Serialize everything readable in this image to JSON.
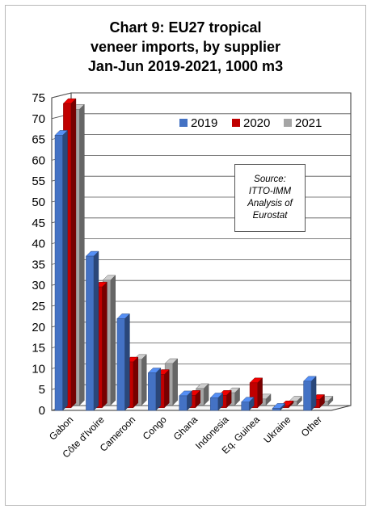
{
  "chart_data": {
    "type": "bar",
    "title_lines": [
      "Chart 9: EU27 tropical",
      "veneer imports, by supplier",
      "Jan-Jun 2019-2021, 1000 m3"
    ],
    "categories": [
      "Gabon",
      "Côte d'Ivoire",
      "Cameroon",
      "Congo",
      "Ghana",
      "Indonesia",
      "Eq. Guinea",
      "Ukraine",
      "Other"
    ],
    "series": [
      {
        "name": "2019",
        "color": "#4472C4",
        "values": [
          66,
          37,
          22,
          9,
          3.5,
          3,
          2,
          0.5,
          7
        ]
      },
      {
        "name": "2020",
        "color": "#C00000",
        "values": [
          73,
          29,
          11,
          8,
          3,
          3,
          6,
          0.5,
          2
        ]
      },
      {
        "name": "2021",
        "color": "#A5A5A5",
        "values": [
          71,
          30,
          11,
          10,
          4,
          3,
          1.5,
          1,
          1
        ]
      }
    ],
    "yticks": [
      "0",
      "5",
      "10",
      "15",
      "20",
      "25",
      "30",
      "35",
      "40",
      "45",
      "50",
      "55",
      "60",
      "65",
      "70",
      "75"
    ],
    "ylim": [
      0,
      75
    ],
    "grid": true,
    "legend_position": "top-right",
    "annotation": [
      "Source:",
      "ITTO-IMM",
      "Analysis of",
      "Eurostat"
    ]
  }
}
